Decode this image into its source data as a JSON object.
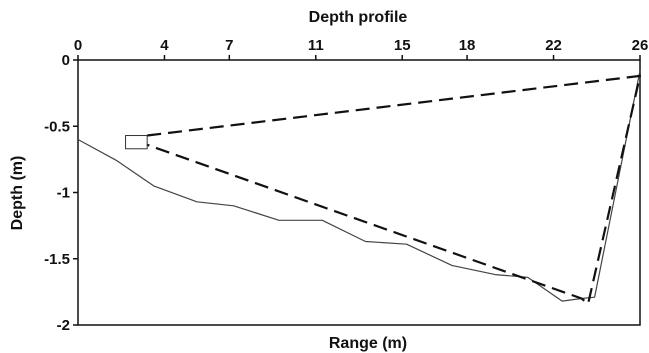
{
  "chart_data": {
    "type": "line",
    "title": "Depth profile",
    "xlabel": "Range (m)",
    "ylabel": "Depth (m)",
    "xlim": [
      0,
      26
    ],
    "ylim": [
      -2,
      0
    ],
    "x_axis_position": "top",
    "x_ticks": [
      0,
      4,
      7,
      11,
      15,
      18,
      22,
      26
    ],
    "x_tick_labels": [
      "0",
      "4",
      "7",
      "11",
      "15",
      "18",
      "22",
      "26"
    ],
    "y_ticks": [
      0,
      -0.5,
      -1,
      -1.5,
      -2
    ],
    "y_tick_labels": [
      "0",
      "-0.5",
      "-1",
      "-1.5",
      "-2"
    ],
    "grid": false,
    "series": [
      {
        "style": "solid",
        "color": "#444444",
        "points": [
          [
            0,
            -0.6
          ],
          [
            1.8,
            -0.76
          ],
          [
            3.5,
            -0.95
          ],
          [
            5.5,
            -1.07
          ],
          [
            7.2,
            -1.1
          ],
          [
            9.3,
            -1.21
          ],
          [
            11.3,
            -1.21
          ],
          [
            13.3,
            -1.37
          ],
          [
            15.2,
            -1.39
          ],
          [
            17.3,
            -1.55
          ],
          [
            19.3,
            -1.62
          ],
          [
            20.8,
            -1.64
          ],
          [
            22.4,
            -1.82
          ],
          [
            23.3,
            -1.8
          ],
          [
            23.9,
            -1.79
          ],
          [
            26,
            -0.08
          ]
        ]
      },
      {
        "style": "dashed",
        "color": "#111111",
        "points": [
          [
            3.2,
            -0.57
          ],
          [
            26,
            -0.12
          ],
          [
            23.6,
            -1.84
          ],
          [
            23.3,
            -1.8
          ],
          [
            3.2,
            -0.64
          ]
        ]
      }
    ],
    "annotation_box": {
      "x0": 2.2,
      "x1": 3.2,
      "y0": -0.57,
      "y1": -0.67
    }
  }
}
